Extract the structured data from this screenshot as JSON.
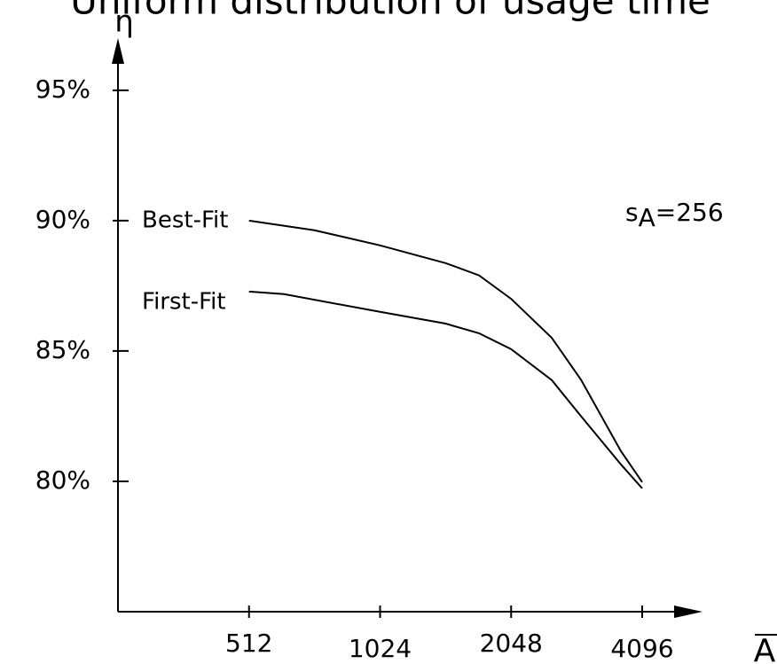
{
  "chart_data": {
    "type": "line",
    "title": "Uniform distribution of usage time",
    "xlabel": "A",
    "ylabel": "η",
    "xscale": "log",
    "xlim": [
      256,
      4096
    ],
    "xticks": [
      512,
      1024,
      2048,
      4096
    ],
    "ylim": [
      75,
      97
    ],
    "yticks": [
      {
        "value": 95,
        "label": "95%"
      },
      {
        "value": 90,
        "label": "90%"
      },
      {
        "value": 85,
        "label": "85%"
      },
      {
        "value": 80,
        "label": "80%"
      }
    ],
    "annotation": {
      "symbol": "s",
      "subscript": "A",
      "text": "=256"
    },
    "series": [
      {
        "name": "Best-Fit",
        "color": "#000000",
        "x": [
          512,
          724,
          1024,
          1448,
          1728,
          2048,
          2540,
          2963,
          3660,
          4096
        ],
        "values": [
          90,
          89.63,
          89.05,
          88.37,
          87.9,
          87.0,
          85.5,
          83.9,
          81.16,
          79.97
        ]
      },
      {
        "name": "First-Fit",
        "color": "#000000",
        "x": [
          512,
          616,
          1024,
          1448,
          1728,
          2048,
          2540,
          2963,
          3660,
          4096
        ],
        "values": [
          87.28,
          87.18,
          86.5,
          86.05,
          85.68,
          85.07,
          83.88,
          82.5,
          80.65,
          79.73
        ]
      }
    ]
  }
}
